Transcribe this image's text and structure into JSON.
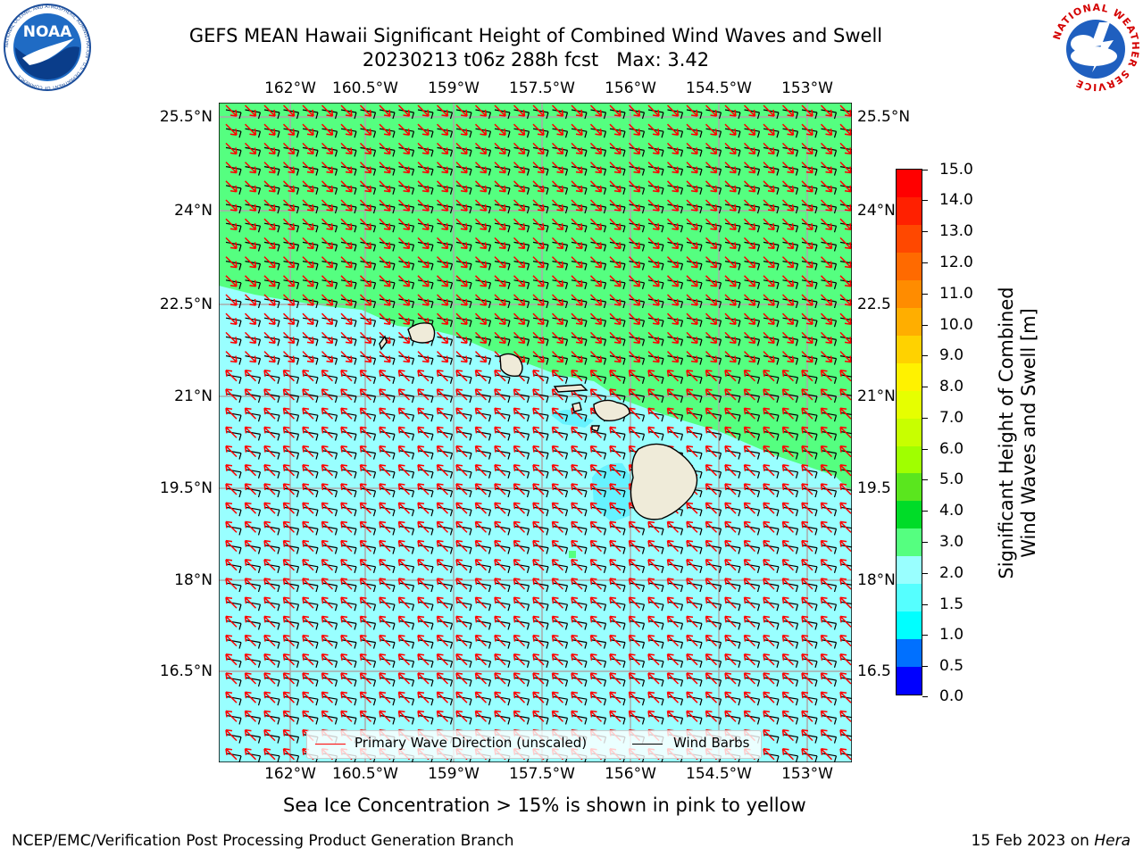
{
  "header": {
    "title_line1": "GEFS MEAN Hawaii Significant Height of Combined Wind Waves and Swell",
    "title_line2": "20230213 t06z 288h fcst   Max: 3.42"
  },
  "logos": {
    "left": "NOAA",
    "left_ring_text": "NATIONAL OCEANIC AND ATMOSPHERIC ADMINISTRATION · U.S. DEPARTMENT OF COMMERCE",
    "right_ring_text": "NATIONAL WEATHER SERVICE"
  },
  "map": {
    "lon_labels": [
      "162°W",
      "160.5°W",
      "159°W",
      "157.5°W",
      "156°W",
      "154.5°W",
      "153°W"
    ],
    "lat_labels_left": [
      "25.5°N",
      "24°N",
      "22.5°N",
      "21°N",
      "19.5°N",
      "18°N",
      "16.5°N"
    ],
    "lat_labels_right": [
      "25.5°N",
      "24°N",
      "22.5",
      "21°N",
      "19.5",
      "18°N",
      "16.5"
    ],
    "field_colors": {
      "ocean_2_3": "#99ffff",
      "ocean_3_4": "#55ff80",
      "ocean_1_5_2": "#66f2ff",
      "land": "#efebd9"
    },
    "vector_colors": {
      "wave_direction": "#ff0000",
      "wind_barbs": "#000000"
    }
  },
  "legend": {
    "wave_label": "Primary Wave Direction (unscaled)",
    "wind_label": "Wind Barbs"
  },
  "colorbar": {
    "title_line1": "Significant Height of Combined",
    "title_line2": "Wind Waves and Swell [m]",
    "ticks": [
      "15.0",
      "14.0",
      "13.0",
      "12.0",
      "11.0",
      "10.0",
      "9.0",
      "8.0",
      "7.0",
      "6.0",
      "5.0",
      "4.0",
      "3.0",
      "2.0",
      "1.5",
      "1.0",
      "0.5",
      "0.0"
    ],
    "colors_top_to_bottom": [
      "#ff0000",
      "#ff2000",
      "#ff4800",
      "#ff6a00",
      "#ff8c00",
      "#ffae00",
      "#ffd200",
      "#fff200",
      "#e6ff00",
      "#c8ff00",
      "#a0ff00",
      "#5ae61e",
      "#00dc28",
      "#55ff80",
      "#99ffff",
      "#55ffff",
      "#00ffff",
      "#0070ff",
      "#0000ff"
    ]
  },
  "caption": "Sea Ice Concentration > 15% is shown in pink to yellow",
  "footer": {
    "left": "NCEP/EMC/Verification Post Processing Product Generation Branch",
    "right_date": "15 Feb 2023 on ",
    "right_host": "Hera"
  }
}
